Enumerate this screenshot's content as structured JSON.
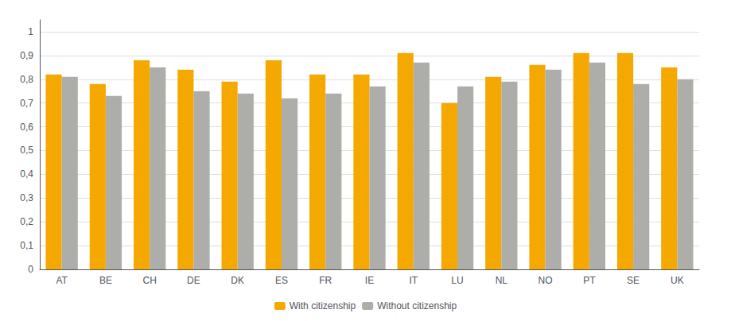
{
  "chart_data": {
    "type": "bar",
    "categories": [
      "AT",
      "BE",
      "CH",
      "DE",
      "DK",
      "ES",
      "FR",
      "IE",
      "IT",
      "LU",
      "NL",
      "NO",
      "PT",
      "SE",
      "UK"
    ],
    "series": [
      {
        "name": "With citizenship",
        "color": "#F5A800",
        "values": [
          0.82,
          0.78,
          0.88,
          0.84,
          0.79,
          0.88,
          0.82,
          0.82,
          0.91,
          0.7,
          0.81,
          0.86,
          0.91,
          0.91,
          0.85
        ]
      },
      {
        "name": "Without citizenship",
        "color": "#ADADAA",
        "values": [
          0.81,
          0.73,
          0.85,
          0.75,
          0.74,
          0.72,
          0.74,
          0.77,
          0.87,
          0.77,
          0.79,
          0.84,
          0.87,
          0.78,
          0.8
        ]
      }
    ],
    "ylim": [
      0,
      1.05
    ],
    "yticks": [
      0,
      {
        "value": 0.1,
        "label": "0,1"
      },
      {
        "value": 0.2,
        "label": "0,2"
      },
      {
        "value": 0.3,
        "label": "0,3"
      },
      {
        "value": 0.4,
        "label": "0,4"
      },
      {
        "value": 0.5,
        "label": "0,5"
      },
      {
        "value": 0.6,
        "label": "0,6"
      },
      {
        "value": 0.7,
        "label": "0,7"
      },
      {
        "value": 0.8,
        "label": "0,8"
      },
      {
        "value": 0.9,
        "label": "0,9"
      },
      1
    ],
    "grid": true,
    "legend": "bottom"
  }
}
